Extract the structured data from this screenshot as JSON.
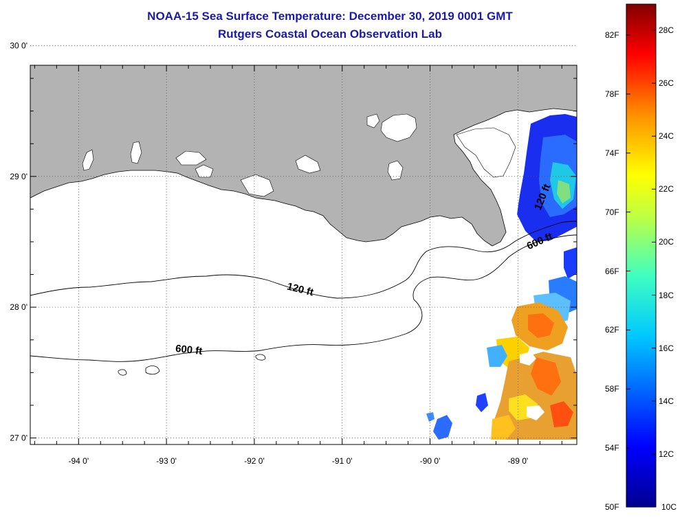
{
  "title": "NOAA-15 Sea Surface Temperature:  December 30, 2019 0001 GMT",
  "subtitle": "Rutgers Coastal Ocean Observation Lab",
  "map": {
    "lon_range": [
      -94.55,
      -88.33
    ],
    "lat_range": [
      26.95,
      29.85
    ],
    "lon_ticks": [
      {
        "value": -94,
        "label": "-94 0'"
      },
      {
        "value": -93,
        "label": "-93 0'"
      },
      {
        "value": -92,
        "label": "-92 0'"
      },
      {
        "value": -91,
        "label": "-91 0'"
      },
      {
        "value": -90,
        "label": "-90 0'"
      },
      {
        "value": -89,
        "label": "-89 0'"
      }
    ],
    "lat_ticks": [
      {
        "value": 30,
        "label": "30 0'"
      },
      {
        "value": 29,
        "label": "29 0'"
      },
      {
        "value": 28,
        "label": "28 0'"
      },
      {
        "value": 27,
        "label": "27 0'"
      }
    ],
    "contour_labels": [
      "120 ft",
      "600 ft",
      "120 ft",
      "600 ft"
    ],
    "land_color": "#b3b3b3"
  },
  "colorbar": {
    "colors": [
      "#00008f",
      "#0000ff",
      "#0080ff",
      "#00ffff",
      "#80ff80",
      "#ffff00",
      "#ff8000",
      "#ff0000",
      "#800000"
    ],
    "fahrenheit": [
      "82F",
      "78F",
      "74F",
      "70F",
      "66F",
      "62F",
      "58F",
      "54F",
      "50F"
    ],
    "celsius": [
      "28C",
      "26C",
      "24C",
      "22C",
      "20C",
      "18C",
      "16C",
      "14C",
      "12C",
      "10C"
    ]
  }
}
